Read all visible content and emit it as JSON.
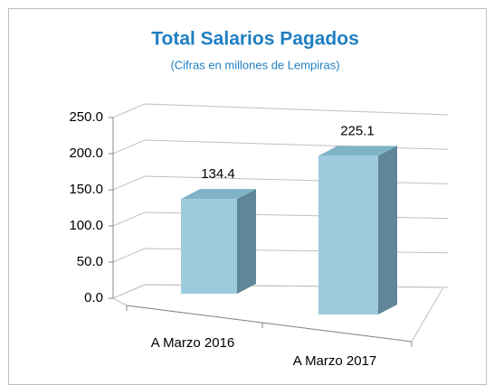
{
  "chart_data": {
    "type": "bar3d",
    "title": "Total Salarios Pagados",
    "subtitle": "(Cifras en millones de Lempiras)",
    "categories": [
      "A Marzo 2016",
      "A Marzo 2017"
    ],
    "values": [
      134.4,
      225.1
    ],
    "color": "#9dcadc",
    "ylim": [
      0,
      250
    ],
    "yticks": [
      {
        "value": 0,
        "label": "0.0"
      },
      {
        "value": 50,
        "label": "50.0"
      },
      {
        "value": 100,
        "label": "100.0"
      },
      {
        "value": 150,
        "label": "150.0"
      },
      {
        "value": 200,
        "label": "200.0"
      },
      {
        "value": 250,
        "label": "250.0"
      }
    ],
    "grid": true
  }
}
